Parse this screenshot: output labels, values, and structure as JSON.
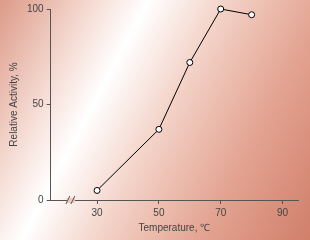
{
  "chart_data": {
    "type": "line",
    "x_label": "Temperature, ℃",
    "y_label": "Relative Activity, %",
    "x": [
      30,
      50,
      60,
      70,
      80
    ],
    "values": [
      5,
      37,
      72,
      100,
      97
    ],
    "color": "#000000",
    "marker": "circle",
    "line_style": "solid",
    "xlim": [
      15,
      95
    ],
    "xticks": [
      30,
      50,
      70,
      90
    ],
    "ylim": [
      0,
      100
    ],
    "yticks": [
      0,
      50,
      100
    ],
    "grid": false
  }
}
